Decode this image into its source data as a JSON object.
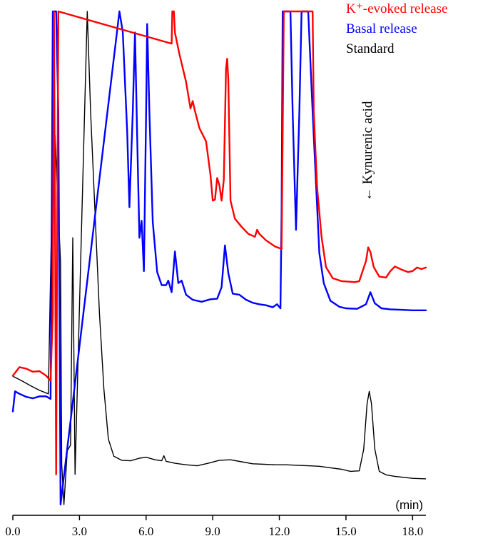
{
  "chart_data": {
    "type": "line",
    "xlabel": "(min)",
    "ylabel": "",
    "xlim": [
      0.0,
      18.6
    ],
    "ylim": [
      0,
      100
    ],
    "x_ticks": [
      "0.0",
      "3.0",
      "6.0",
      "9.0",
      "12.0",
      "15.0",
      "18.0"
    ],
    "grid": false,
    "legend_position": "top-right",
    "annotation": "← Kynurenic acid",
    "series": [
      {
        "name": "K⁺-evoked release",
        "color": "#ff0000",
        "points": [
          [
            0.0,
            27.6
          ],
          [
            0.3,
            29.3
          ],
          [
            0.6,
            29.0
          ],
          [
            0.9,
            28.4
          ],
          [
            1.2,
            28.5
          ],
          [
            1.5,
            27.6
          ],
          [
            1.7,
            26.6
          ],
          [
            1.8,
            40
          ],
          [
            1.85,
            100
          ],
          [
            1.9,
            60
          ],
          [
            1.95,
            8
          ],
          [
            2.0,
            60
          ],
          [
            2.05,
            100
          ],
          [
            7.15,
            93.6
          ],
          [
            7.18,
            100
          ],
          [
            7.25,
            100
          ],
          [
            7.3,
            95.8
          ],
          [
            7.5,
            91.5
          ],
          [
            7.8,
            86
          ],
          [
            8.0,
            80.7
          ],
          [
            8.1,
            82.2
          ],
          [
            8.2,
            80.2
          ],
          [
            8.4,
            76.8
          ],
          [
            8.7,
            74.2
          ],
          [
            8.9,
            67.5
          ],
          [
            9.0,
            62.4
          ],
          [
            9.1,
            62.6
          ],
          [
            9.2,
            66.9
          ],
          [
            9.3,
            65.5
          ],
          [
            9.4,
            62.4
          ],
          [
            9.5,
            66.5
          ],
          [
            9.6,
            88.6
          ],
          [
            9.65,
            90.6
          ],
          [
            9.7,
            86.5
          ],
          [
            9.8,
            62.4
          ],
          [
            10.0,
            58.8
          ],
          [
            10.3,
            57.2
          ],
          [
            10.6,
            55.8
          ],
          [
            10.9,
            55.2
          ],
          [
            11.0,
            56.6
          ],
          [
            11.1,
            55.8
          ],
          [
            11.4,
            54.5
          ],
          [
            11.8,
            53.3
          ],
          [
            12.1,
            52.8
          ],
          [
            12.2,
            100
          ],
          [
            13.5,
            100
          ],
          [
            13.55,
            80
          ],
          [
            13.7,
            65
          ],
          [
            13.9,
            55.2
          ],
          [
            14.1,
            49.2
          ],
          [
            14.4,
            47.0
          ],
          [
            14.8,
            46.4
          ],
          [
            15.1,
            46.3
          ],
          [
            15.4,
            46.2
          ],
          [
            15.6,
            46.4
          ],
          [
            15.9,
            50.4
          ],
          [
            16.0,
            53.1
          ],
          [
            16.1,
            52.2
          ],
          [
            16.25,
            49.2
          ],
          [
            16.5,
            47.3
          ],
          [
            16.8,
            47.1
          ],
          [
            17.0,
            48.4
          ],
          [
            17.2,
            49.3
          ],
          [
            17.5,
            48.7
          ],
          [
            17.8,
            48.2
          ],
          [
            18.0,
            48.4
          ],
          [
            18.2,
            49.1
          ],
          [
            18.4,
            48.8
          ],
          [
            18.6,
            49.1
          ]
        ]
      },
      {
        "name": "Basal release",
        "color": "#0000ff",
        "points": [
          [
            0.0,
            20.5
          ],
          [
            0.1,
            24.5
          ],
          [
            0.3,
            24.0
          ],
          [
            0.6,
            23.4
          ],
          [
            0.9,
            23.1
          ],
          [
            1.2,
            23.5
          ],
          [
            1.5,
            23.5
          ],
          [
            1.7,
            23.0
          ],
          [
            1.75,
            60
          ],
          [
            1.8,
            100
          ],
          [
            1.95,
            100
          ],
          [
            2.05,
            80
          ],
          [
            2.15,
            2
          ],
          [
            4.8,
            100
          ],
          [
            4.95,
            95.9
          ],
          [
            5.15,
            76
          ],
          [
            5.25,
            61.1
          ],
          [
            5.4,
            80
          ],
          [
            5.5,
            95.8
          ],
          [
            5.6,
            75
          ],
          [
            5.7,
            55
          ],
          [
            5.8,
            58.4
          ],
          [
            5.9,
            48.4
          ],
          [
            6.0,
            80
          ],
          [
            6.05,
            97.5
          ],
          [
            6.15,
            80
          ],
          [
            6.3,
            58.2
          ],
          [
            6.5,
            48.2
          ],
          [
            6.7,
            45.6
          ],
          [
            6.9,
            45.6
          ],
          [
            7.0,
            46.5
          ],
          [
            7.15,
            44.2
          ],
          [
            7.3,
            52.3
          ],
          [
            7.45,
            46.0
          ],
          [
            7.6,
            46.5
          ],
          [
            7.8,
            43.7
          ],
          [
            8.1,
            42.7
          ],
          [
            8.5,
            42.3
          ],
          [
            8.9,
            42.8
          ],
          [
            9.2,
            42.9
          ],
          [
            9.4,
            45.2
          ],
          [
            9.55,
            53.5
          ],
          [
            9.7,
            48.0
          ],
          [
            9.9,
            43.9
          ],
          [
            10.2,
            43.7
          ],
          [
            10.5,
            42.7
          ],
          [
            10.8,
            42.1
          ],
          [
            11.1,
            41.8
          ],
          [
            11.4,
            41.6
          ],
          [
            11.7,
            41.2
          ],
          [
            11.9,
            41.8
          ],
          [
            12.05,
            41.0
          ],
          [
            12.1,
            60
          ],
          [
            12.15,
            100
          ],
          [
            12.5,
            100
          ],
          [
            12.6,
            80
          ],
          [
            12.75,
            56.6
          ],
          [
            12.9,
            80
          ],
          [
            13.0,
            100
          ],
          [
            13.3,
            100
          ],
          [
            13.5,
            80
          ],
          [
            13.8,
            52
          ],
          [
            14.0,
            46
          ],
          [
            14.3,
            42.5
          ],
          [
            14.7,
            41.3
          ],
          [
            15.0,
            41.0
          ],
          [
            15.5,
            40.9
          ],
          [
            15.9,
            41.8
          ],
          [
            16.1,
            44.2
          ],
          [
            16.3,
            42.0
          ],
          [
            16.6,
            41.0
          ],
          [
            17.0,
            40.8
          ],
          [
            17.5,
            40.7
          ],
          [
            18.0,
            40.6
          ],
          [
            18.6,
            40.6
          ]
        ]
      },
      {
        "name": "Standard",
        "color": "#000000",
        "points": [
          [
            0.0,
            27.5
          ],
          [
            0.4,
            26.6
          ],
          [
            0.8,
            25.6
          ],
          [
            1.2,
            24.7
          ],
          [
            1.6,
            24.0
          ],
          [
            1.75,
            60
          ],
          [
            1.9,
            75.4
          ],
          [
            2.05,
            60
          ],
          [
            2.15,
            50
          ],
          [
            2.2,
            10
          ],
          [
            2.3,
            2
          ],
          [
            2.45,
            12.7
          ],
          [
            2.6,
            13.8
          ],
          [
            2.7,
            55
          ],
          [
            2.8,
            8
          ],
          [
            3.35,
            100
          ],
          [
            3.5,
            80
          ],
          [
            3.7,
            60
          ],
          [
            3.9,
            40
          ],
          [
            4.1,
            25
          ],
          [
            4.3,
            15
          ],
          [
            4.55,
            11.6
          ],
          [
            4.9,
            10.8
          ],
          [
            5.3,
            10.7
          ],
          [
            5.7,
            11.2
          ],
          [
            6.0,
            11.4
          ],
          [
            6.4,
            10.9
          ],
          [
            6.7,
            10.7
          ],
          [
            6.8,
            11.7
          ],
          [
            6.9,
            10.6
          ],
          [
            7.3,
            10.2
          ],
          [
            7.8,
            9.9
          ],
          [
            8.3,
            9.7
          ],
          [
            8.8,
            10.2
          ],
          [
            9.3,
            10.8
          ],
          [
            9.8,
            10.9
          ],
          [
            10.3,
            10.5
          ],
          [
            10.8,
            10.1
          ],
          [
            11.3,
            10.0
          ],
          [
            11.8,
            9.9
          ],
          [
            12.3,
            9.9
          ],
          [
            12.8,
            9.8
          ],
          [
            13.3,
            9.7
          ],
          [
            13.8,
            9.6
          ],
          [
            14.3,
            9.3
          ],
          [
            14.8,
            9.0
          ],
          [
            15.2,
            8.6
          ],
          [
            15.6,
            8.7
          ],
          [
            15.8,
            13
          ],
          [
            15.95,
            22
          ],
          [
            16.05,
            24.5
          ],
          [
            16.15,
            22
          ],
          [
            16.3,
            13
          ],
          [
            16.5,
            8.6
          ],
          [
            16.8,
            7.9
          ],
          [
            17.2,
            7.6
          ],
          [
            17.6,
            7.4
          ],
          [
            18.0,
            7.2
          ],
          [
            18.6,
            7.1
          ]
        ]
      }
    ]
  }
}
